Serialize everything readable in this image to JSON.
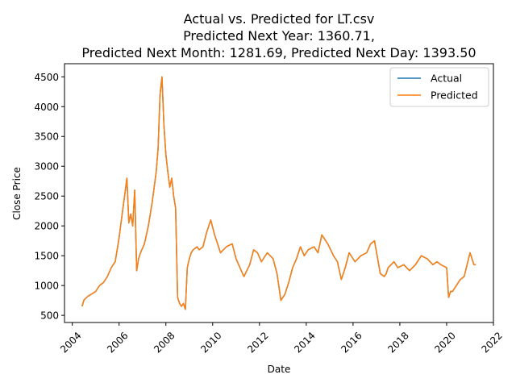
{
  "chart_data": {
    "type": "line",
    "title_lines": [
      "Actual vs. Predicted for LT.csv",
      "Predicted Next Year: 1360.71,",
      "Predicted Next Month: 1281.69, Predicted Next Day: 1393.50"
    ],
    "xlabel": "Date",
    "ylabel": "Close Price",
    "xlim": [
      "2003-09",
      "2022-01"
    ],
    "ylim": [
      380,
      4720
    ],
    "x_ticks": [
      "2004",
      "2006",
      "2008",
      "2010",
      "2012",
      "2014",
      "2016",
      "2018",
      "2020",
      "2022"
    ],
    "y_ticks": [
      500,
      1000,
      1500,
      2000,
      2500,
      3000,
      3500,
      4000,
      4500
    ],
    "grid": false,
    "legend": "upper-right",
    "x": [
      "2004-06",
      "2004-07",
      "2004-09",
      "2004-11",
      "2005-01",
      "2005-03",
      "2005-05",
      "2005-07",
      "2005-09",
      "2005-11",
      "2006-01",
      "2006-03",
      "2006-04",
      "2006-05",
      "2006-06",
      "2006-07",
      "2006-08",
      "2006-09",
      "2006-10",
      "2006-11",
      "2006-12",
      "2007-02",
      "2007-04",
      "2007-06",
      "2007-08",
      "2007-09",
      "2007-10",
      "2007-11",
      "2007-12",
      "2008-01",
      "2008-02",
      "2008-03",
      "2008-04",
      "2008-05",
      "2008-06",
      "2008-07",
      "2008-08",
      "2008-09",
      "2008-10",
      "2008-11",
      "2008-12",
      "2009-01",
      "2009-02",
      "2009-03",
      "2009-05",
      "2009-06",
      "2009-08",
      "2009-10",
      "2009-12",
      "2010-02",
      "2010-05",
      "2010-08",
      "2010-11",
      "2011-01",
      "2011-03",
      "2011-05",
      "2011-08",
      "2011-10",
      "2011-12",
      "2012-02",
      "2012-05",
      "2012-08",
      "2012-10",
      "2012-12",
      "2013-02",
      "2013-04",
      "2013-06",
      "2013-08",
      "2013-10",
      "2013-12",
      "2014-02",
      "2014-05",
      "2014-07",
      "2014-09",
      "2014-12",
      "2015-03",
      "2015-05",
      "2015-07",
      "2015-09",
      "2015-11",
      "2016-01",
      "2016-02",
      "2016-05",
      "2016-08",
      "2016-10",
      "2016-12",
      "2017-03",
      "2017-05",
      "2017-06",
      "2017-07",
      "2017-10",
      "2017-12",
      "2018-03",
      "2018-06",
      "2018-09",
      "2018-12",
      "2019-03",
      "2019-06",
      "2019-08",
      "2019-10",
      "2020-01",
      "2020-02",
      "2020-03",
      "2020-04",
      "2020-06",
      "2020-08",
      "2020-10",
      "2021-01",
      "2021-02",
      "2021-03",
      "2021-04"
    ],
    "series": [
      {
        "name": "Actual",
        "color": "#1f77b4",
        "values": [
          650,
          760,
          820,
          860,
          900,
          1000,
          1050,
          1150,
          1300,
          1400,
          1800,
          2300,
          2550,
          2800,
          2050,
          2200,
          2000,
          2600,
          1250,
          1450,
          1550,
          1700,
          2000,
          2400,
          2900,
          3300,
          4200,
          4500,
          3700,
          3200,
          2900,
          2650,
          2800,
          2500,
          2300,
          800,
          700,
          650,
          700,
          600,
          1300,
          1450,
          1550,
          1600,
          1650,
          1600,
          1650,
          1900,
          2100,
          1850,
          1550,
          1650,
          1700,
          1450,
          1300,
          1150,
          1350,
          1600,
          1550,
          1400,
          1550,
          1450,
          1200,
          750,
          850,
          1050,
          1300,
          1450,
          1650,
          1500,
          1600,
          1650,
          1550,
          1850,
          1700,
          1500,
          1400,
          1100,
          1300,
          1550,
          1450,
          1400,
          1500,
          1550,
          1700,
          1750,
          1200,
          1150,
          1200,
          1300,
          1400,
          1300,
          1350,
          1250,
          1350,
          1500,
          1450,
          1350,
          1400,
          1350,
          1300,
          800,
          900,
          900,
          1000,
          1100,
          1150,
          1550,
          1450,
          1350,
          1350
        ]
      },
      {
        "name": "Predicted",
        "color": "#ff7f0e",
        "values": [
          650,
          760,
          820,
          860,
          900,
          1000,
          1050,
          1150,
          1300,
          1400,
          1800,
          2300,
          2550,
          2800,
          2050,
          2200,
          2000,
          2600,
          1250,
          1450,
          1550,
          1700,
          2000,
          2400,
          2900,
          3300,
          4200,
          4500,
          3700,
          3200,
          2900,
          2650,
          2800,
          2500,
          2300,
          800,
          700,
          650,
          700,
          600,
          1300,
          1450,
          1550,
          1600,
          1650,
          1600,
          1650,
          1900,
          2100,
          1850,
          1550,
          1650,
          1700,
          1450,
          1300,
          1150,
          1350,
          1600,
          1550,
          1400,
          1550,
          1450,
          1200,
          750,
          850,
          1050,
          1300,
          1450,
          1650,
          1500,
          1600,
          1650,
          1550,
          1850,
          1700,
          1500,
          1400,
          1100,
          1300,
          1550,
          1450,
          1400,
          1500,
          1550,
          1700,
          1750,
          1200,
          1150,
          1200,
          1300,
          1400,
          1300,
          1350,
          1250,
          1350,
          1500,
          1450,
          1350,
          1400,
          1350,
          1300,
          800,
          900,
          900,
          1000,
          1100,
          1150,
          1550,
          1450,
          1350,
          1350
        ]
      }
    ]
  }
}
